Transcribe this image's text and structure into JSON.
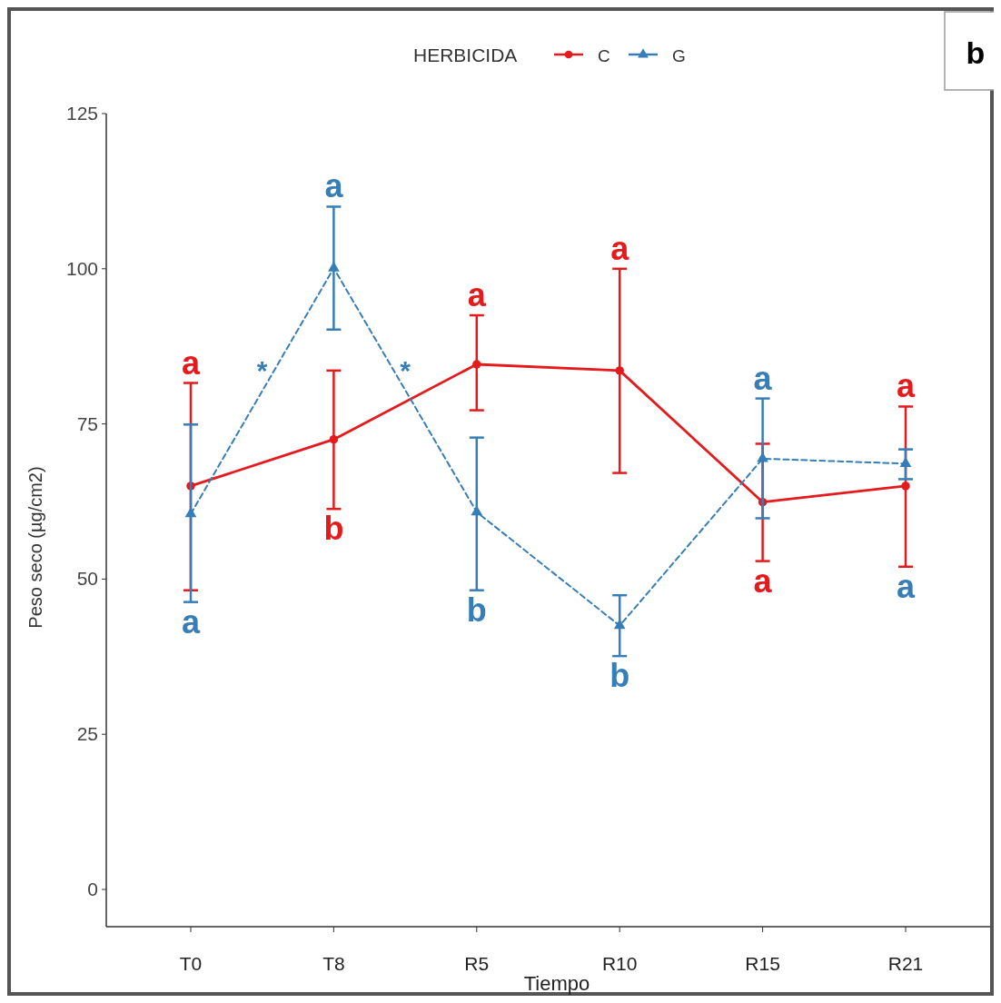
{
  "chart_data": {
    "type": "line",
    "xlabel": "Tiempo",
    "ylabel": "Peso seco (µg/cm2)",
    "legend_title": "HERBICIDA",
    "legend": "top",
    "grid": false,
    "categories": [
      "T0",
      "T8",
      "R5",
      "R10",
      "R15",
      "R21"
    ],
    "ylim": [
      -6,
      125
    ],
    "yticks": [
      0,
      25,
      50,
      75,
      100,
      125
    ],
    "series": [
      {
        "name": "C",
        "color": "#e41a1c",
        "marker": "circle",
        "line_style": "solid",
        "values": [
          65,
          72.5,
          84.6,
          83.6,
          62.4,
          65
        ],
        "errors": [
          [
            48.2,
            81.6
          ],
          [
            61.3,
            83.6
          ],
          [
            77.2,
            92.5
          ],
          [
            67.1,
            100
          ],
          [
            52.9,
            71.8
          ],
          [
            52,
            77.8
          ]
        ],
        "value_labels": [
          "a",
          "b",
          "a",
          "a",
          "a",
          "a"
        ]
      },
      {
        "name": "G",
        "color": "#377eb8",
        "marker": "triangle",
        "line_style": "dashed",
        "values": [
          60.5,
          100.1,
          60.8,
          42.5,
          69.4,
          68.6
        ],
        "errors": [
          [
            46.3,
            74.9
          ],
          [
            90.2,
            110
          ],
          [
            48.2,
            72.8
          ],
          [
            37.6,
            47.4
          ],
          [
            59.8,
            79.1
          ],
          [
            66.1,
            70.9
          ]
        ],
        "value_labels": [
          "a",
          "a",
          "b",
          "b",
          "a",
          "a"
        ]
      }
    ],
    "annotations": [
      "b",
      "*",
      "*"
    ]
  }
}
